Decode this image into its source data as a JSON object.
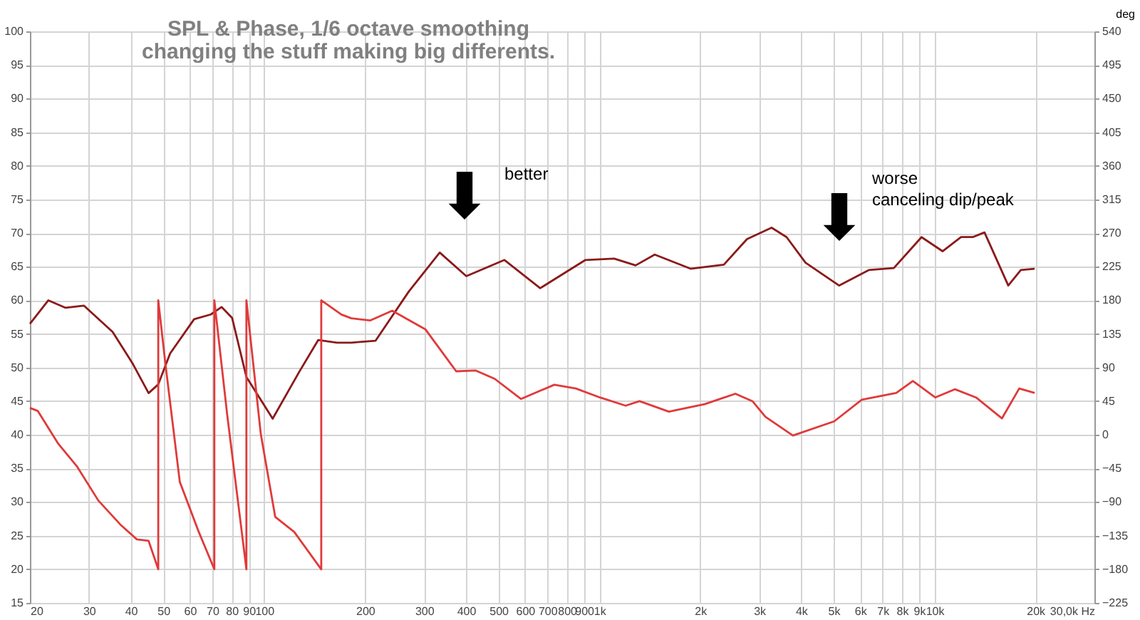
{
  "chart_data": {
    "type": "line",
    "title": "SPL & Phase, 1/6 octave smoothing",
    "subtitle": "changing the stuff making big differents.",
    "y2label": "deg",
    "log": "x",
    "grid": true,
    "marker": "none",
    "line_style": "solid",
    "xlim": [
      20,
      30000
    ],
    "xticks": [
      20,
      30,
      40,
      50,
      60,
      70,
      80,
      90,
      100,
      200,
      300,
      400,
      500,
      600,
      700,
      800,
      900,
      {
        "value": 1000,
        "label": "1k"
      },
      {
        "value": 2000,
        "label": "2k"
      },
      {
        "value": 3000,
        "label": "3k"
      },
      {
        "value": 4000,
        "label": "4k"
      },
      {
        "value": 5000,
        "label": "5k"
      },
      {
        "value": 6000,
        "label": "6k"
      },
      {
        "value": 7000,
        "label": "7k"
      },
      {
        "value": 8000,
        "label": "8k"
      },
      {
        "value": 9000,
        "label": "9k"
      },
      {
        "value": 10000,
        "label": "10k"
      },
      {
        "value": 20000,
        "label": "20k"
      },
      {
        "value": 30000,
        "label": "30,0k Hz"
      }
    ],
    "ylim": [
      15,
      100
    ],
    "yticks": [
      15,
      20,
      25,
      30,
      35,
      40,
      45,
      50,
      55,
      60,
      65,
      70,
      75,
      80,
      85,
      90,
      95,
      100
    ],
    "y2lim": [
      -225,
      540
    ],
    "y2ticks": [
      -225,
      -180,
      -135,
      -90,
      -45,
      0,
      45,
      90,
      135,
      180,
      225,
      270,
      315,
      360,
      405,
      450,
      495,
      540
    ],
    "series": [
      {
        "color": "#8b1a1a",
        "x": [
          20,
          22.7,
          25.5,
          29,
          35.3,
          40.4,
          45.2,
          48.3,
          52.4,
          61.8,
          69.3,
          74.6,
          80.2,
          88.5,
          106,
          127,
          145,
          165,
          182,
          215,
          270,
          334,
          401,
          521,
          666,
          909,
          1107,
          1283,
          1463,
          1871,
          2353,
          2758,
          3266,
          3620,
          4123,
          5190,
          6367,
          7563,
          9147,
          10570,
          12000,
          13000,
          14100,
          16600,
          18100,
          19900
        ],
        "values": [
          56.5,
          60,
          58.9,
          59.2,
          55.3,
          50.7,
          46.2,
          47.5,
          52.1,
          57.2,
          57.9,
          59,
          57.4,
          48.6,
          42.4,
          49.3,
          54.1,
          53.7,
          53.7,
          54,
          61.3,
          67.1,
          63.6,
          66,
          61.8,
          66,
          66.2,
          65.2,
          66.8,
          64.7,
          65.3,
          69.1,
          70.8,
          69.4,
          65.6,
          62.2,
          64.5,
          64.8,
          69.4,
          67.3,
          69.4,
          69.4,
          70.1,
          62.2,
          64.5,
          64.7
        ]
      },
      {
        "axis": "y2",
        "color": "#e03a3a",
        "x": [
          20,
          21.1,
          24.3,
          27.7,
          32,
          37.2,
          41.7,
          45.2,
          48.3,
          48.3,
          50.7,
          56,
          63.8,
          71,
          71,
          77.6,
          88.5,
          88.5,
          97.7,
          107.9,
          122.9,
          148,
          148,
          170,
          182,
          207,
          241,
          303,
          374,
          428,
          487,
          584,
          734,
          851,
          1004,
          1198,
          1318,
          1612,
          2062,
          2546,
          2863,
          3130,
          3780,
          5020,
          6070,
          7690,
          8620,
          10050,
          11500,
          13300,
          15900,
          17900,
          19900
        ],
        "values": [
          36,
          32,
          -12,
          -43,
          -88,
          -120,
          -140,
          -142,
          -180,
          180,
          96,
          -63,
          -130,
          -180,
          180,
          26,
          -180,
          180,
          1,
          -110,
          -130,
          -180,
          180,
          161,
          156,
          153,
          166,
          141,
          85,
          86,
          75,
          48,
          67,
          62,
          50,
          39,
          45,
          31,
          41,
          55,
          45,
          24,
          -1,
          18,
          47,
          56,
          72,
          50,
          61,
          50,
          22,
          62,
          56
        ]
      }
    ],
    "annotations": [
      "better",
      "worse\ncanceling dip/peak"
    ]
  }
}
